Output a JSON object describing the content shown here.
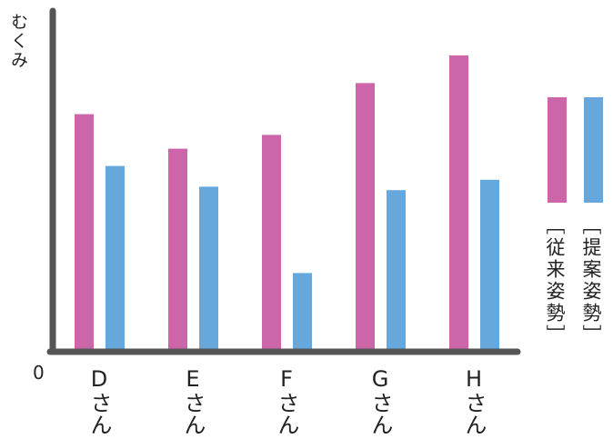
{
  "chart_data": {
    "type": "bar",
    "title": "",
    "xlabel": "",
    "ylabel": "むくみ",
    "y_origin_label": "0",
    "categories": [
      "Dさん",
      "Eさん",
      "Fさん",
      "Gさん",
      "Hさん"
    ],
    "series": [
      {
        "name": "［従来姿勢］",
        "color": "#cc66a8",
        "values": [
          68,
          58,
          62,
          77,
          85
        ]
      },
      {
        "name": "［提案姿勢］",
        "color": "#66a8dc",
        "values": [
          53,
          47,
          22,
          46,
          49
        ]
      }
    ],
    "ylim": [
      0,
      100
    ],
    "grid": false,
    "legend_position": "right",
    "axis_color": "#555555"
  }
}
